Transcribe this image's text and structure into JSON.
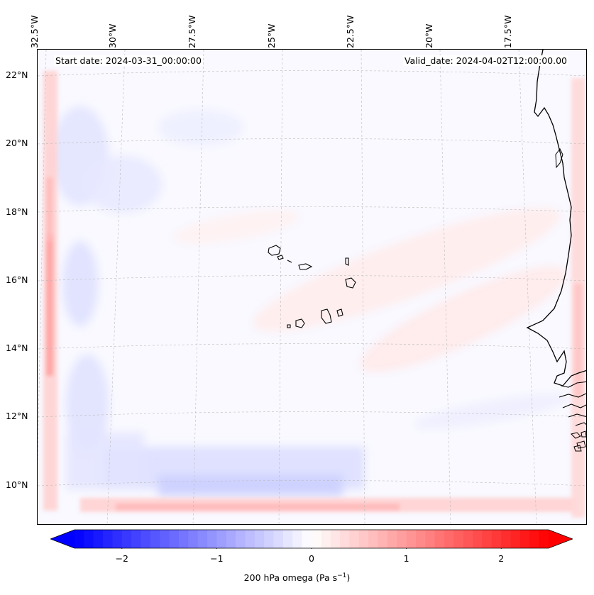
{
  "map": {
    "start_date": "Start date: 2024-03-31_00:00:00",
    "valid_date": "Valid_date: 2024-04-02T12:00:00.00",
    "lon_labels": [
      "32.5°W",
      "30°W",
      "27.5°W",
      "25°W",
      "22.5°W",
      "20°W",
      "17.5°W"
    ],
    "lat_labels": [
      "22°N",
      "20°N",
      "18°N",
      "16°N",
      "14°N",
      "12°N",
      "10°N"
    ],
    "variable": "200 hPa omega",
    "units_prefix": "Pa s",
    "units_exponent": "−1"
  },
  "colorbar": {
    "min": -2.5,
    "max": 2.5,
    "ticks": [
      "−2",
      "−1",
      "0",
      "1",
      "2"
    ],
    "tick_values": [
      -2,
      -1,
      0,
      1,
      2
    ],
    "cmap": "bwr",
    "colors": {
      "low": "#0000ff",
      "mid": "#ffffff",
      "high": "#ff0000"
    }
  }
}
